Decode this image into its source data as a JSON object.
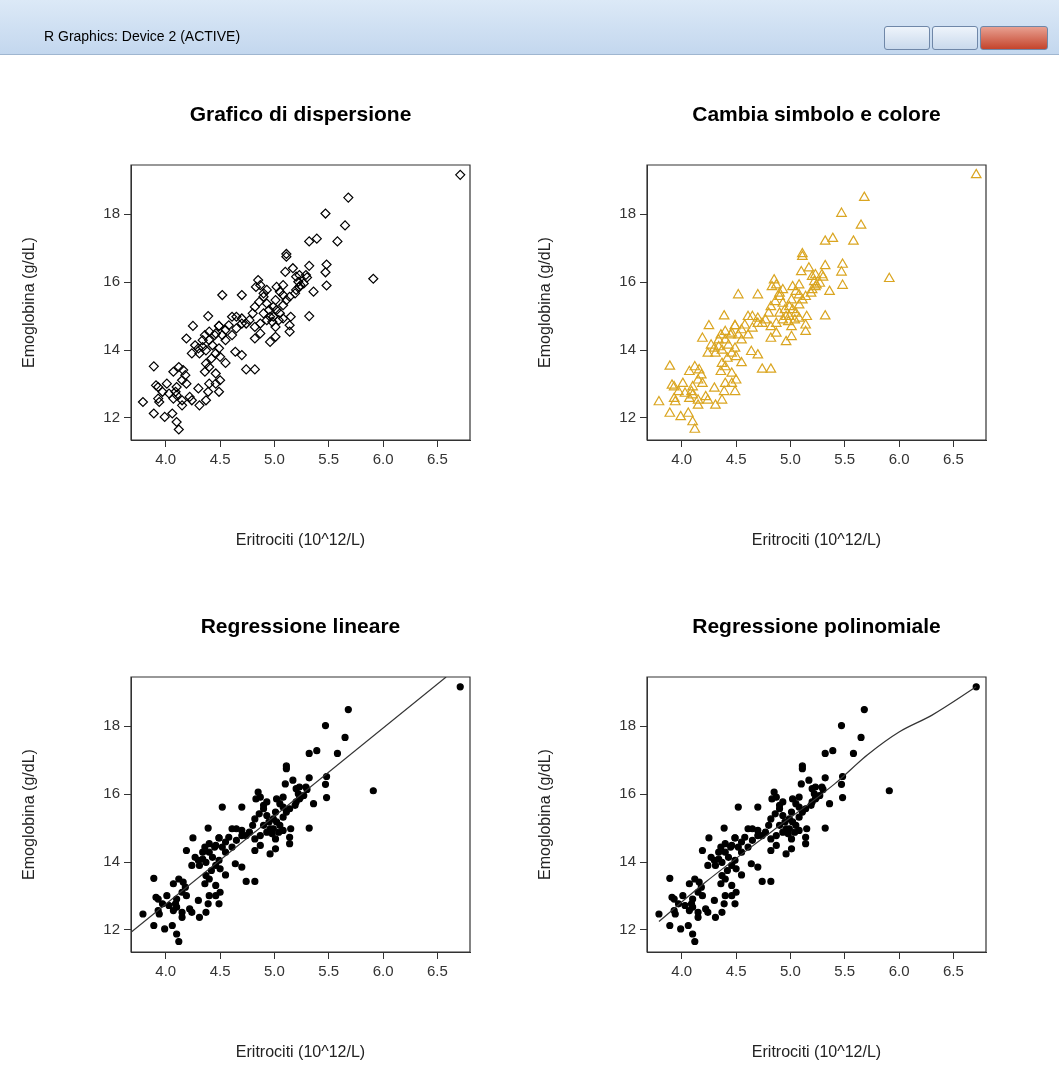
{
  "chart_data": [
    {
      "type": "scatter",
      "title": "Grafico di dispersione",
      "xlabel": "Eritrociti (10^12/L)",
      "ylabel": "Emoglobina (g/dL)",
      "marker": "diamond",
      "grid": false,
      "xlim": [
        3.68,
        6.8
      ],
      "ylim": [
        11.35,
        19.45
      ],
      "xticks": [
        {
          "value": 4,
          "label": "4.0"
        },
        4.5,
        {
          "value": 5,
          "label": "5.0"
        },
        5.5,
        {
          "value": 6,
          "label": "6.0"
        },
        6.5
      ],
      "yticks": [
        12,
        14,
        16,
        18
      ],
      "series": [
        {
          "type": "scatter",
          "color": "#000000",
          "x": [
            6.71,
            5.68,
            5.47,
            5.65,
            5.32,
            5.39,
            5.58,
            5.91,
            5.11,
            5.11,
            5.17,
            5.1,
            5.32,
            5.48,
            5.47,
            5.48,
            5.36,
            5.32,
            5.29,
            5.3,
            5.27,
            5.22,
            5.23,
            5.19,
            5.14,
            5.08,
            5.02,
            5.08,
            5.11,
            5.15,
            5.14,
            5.14,
            4.85,
            4.87,
            4.83,
            4.9,
            4.86,
            4.93,
            4.99,
            5.02,
            5.05,
            5.08,
            4.98,
            5.01,
            4.96,
            4.82,
            4.8,
            4.77,
            4.74,
            4.7,
            4.65,
            4.61,
            4.52,
            4.7,
            4.87,
            4.82,
            4.96,
            5.01,
            4.64,
            4.7,
            4.74,
            4.82,
            4.55,
            4.58,
            4.49,
            4.46,
            4.39,
            4.25,
            4.19,
            4.4,
            4.43,
            4.37,
            4.34,
            4.31,
            4.27,
            4.46,
            4.5,
            4.42,
            4.37,
            4.4,
            4.36,
            4.46,
            4.5,
            4.46,
            4.49,
            4.55,
            4.3,
            4.24,
            4.12,
            4.07,
            4.16,
            4.18,
            4.15,
            4.19,
            4.1,
            4.01,
            3.93,
            3.91,
            3.97,
            3.94,
            3.93,
            3.89,
            3.79,
            3.89,
            3.99,
            4.06,
            4.1,
            4.12,
            4.07,
            4.1,
            4.15,
            4.09,
            4.15,
            4.22,
            4.24,
            4.31,
            4.3,
            4.39,
            4.37,
            4.4,
            4.03,
            4.34,
            4.36,
            4.4,
            4.45,
            4.49,
            4.52,
            4.55,
            4.49,
            4.61,
            4.65,
            4.7,
            4.82,
            4.87,
            4.93,
            4.9,
            4.93,
            4.9,
            5.01,
            5.05,
            5.08,
            5.2,
            5.24,
            5.2,
            5.23,
            4.95,
            4.99,
            5.04
          ],
          "values": [
            19.16,
            18.49,
            18.02,
            17.67,
            17.2,
            17.28,
            17.2,
            16.1,
            16.83,
            16.75,
            16.41,
            16.3,
            16.48,
            16.52,
            16.29,
            15.9,
            15.72,
            15.0,
            16.21,
            16.14,
            15.96,
            16.01,
            15.86,
            15.67,
            15.57,
            15.91,
            15.86,
            15.62,
            15.47,
            14.98,
            14.73,
            14.54,
            16.06,
            15.91,
            15.86,
            15.57,
            15.42,
            15.37,
            15.27,
            15.18,
            15.08,
            14.93,
            14.83,
            14.68,
            14.98,
            15.27,
            15.08,
            14.88,
            14.78,
            14.93,
            14.98,
            14.98,
            15.62,
            15.62,
            14.49,
            14.34,
            14.24,
            14.39,
            13.95,
            13.85,
            13.43,
            13.43,
            14.59,
            14.73,
            14.71,
            14.49,
            15.0,
            14.71,
            14.34,
            14.29,
            14.14,
            13.99,
            14.09,
            13.9,
            14.14,
            13.9,
            13.8,
            13.75,
            13.6,
            13.5,
            13.36,
            13.31,
            13.11,
            13.01,
            12.77,
            13.62,
            14.05,
            13.9,
            13.5,
            13.36,
            13.41,
            13.26,
            13.11,
            13.01,
            12.91,
            13.01,
            12.91,
            12.96,
            12.77,
            12.47,
            12.57,
            13.52,
            12.47,
            12.13,
            12.03,
            12.13,
            11.88,
            11.66,
            12.57,
            12.67,
            12.52,
            12.77,
            12.37,
            12.62,
            12.52,
            12.37,
            12.87,
            12.77,
            12.52,
            13.01,
            12.72,
            14.29,
            14.44,
            14.54,
            14.44,
            14.71,
            14.44,
            14.29,
            14.05,
            14.44,
            14.64,
            14.78,
            14.68,
            14.78,
            14.88,
            15.08,
            15.77,
            15.67,
            15.47,
            15.72,
            15.32,
            15.77,
            15.91,
            16.16,
            16.21,
            15.18,
            14.98,
            14.88
          ]
        }
      ]
    },
    {
      "type": "scatter",
      "title": "Cambia simbolo e colore",
      "xlabel": "Eritrociti (10^12/L)",
      "ylabel": "Emoglobina (g/dL)",
      "marker": "triangle",
      "grid": false,
      "xlim": [
        3.68,
        6.8
      ],
      "ylim": [
        11.35,
        19.45
      ],
      "xticks": [
        {
          "value": 4,
          "label": "4.0"
        },
        4.5,
        {
          "value": 5,
          "label": "5.0"
        },
        5.5,
        {
          "value": 6,
          "label": "6.0"
        },
        6.5
      ],
      "yticks": [
        12,
        14,
        16,
        18
      ],
      "series": [
        {
          "type": "scatter",
          "color": "#daa520",
          "x": [
            6.71,
            5.68,
            5.47,
            5.65,
            5.32,
            5.39,
            5.58,
            5.91,
            5.11,
            5.11,
            5.17,
            5.1,
            5.32,
            5.48,
            5.47,
            5.48,
            5.36,
            5.32,
            5.29,
            5.3,
            5.27,
            5.22,
            5.23,
            5.19,
            5.14,
            5.08,
            5.02,
            5.08,
            5.11,
            5.15,
            5.14,
            5.14,
            4.85,
            4.87,
            4.83,
            4.9,
            4.86,
            4.93,
            4.99,
            5.02,
            5.05,
            5.08,
            4.98,
            5.01,
            4.96,
            4.82,
            4.8,
            4.77,
            4.74,
            4.7,
            4.65,
            4.61,
            4.52,
            4.7,
            4.87,
            4.82,
            4.96,
            5.01,
            4.64,
            4.7,
            4.74,
            4.82,
            4.55,
            4.58,
            4.49,
            4.46,
            4.39,
            4.25,
            4.19,
            4.4,
            4.43,
            4.37,
            4.34,
            4.31,
            4.27,
            4.46,
            4.5,
            4.42,
            4.37,
            4.4,
            4.36,
            4.46,
            4.5,
            4.46,
            4.49,
            4.55,
            4.3,
            4.24,
            4.12,
            4.07,
            4.16,
            4.18,
            4.15,
            4.19,
            4.1,
            4.01,
            3.93,
            3.91,
            3.97,
            3.94,
            3.93,
            3.89,
            3.79,
            3.89,
            3.99,
            4.06,
            4.1,
            4.12,
            4.07,
            4.1,
            4.15,
            4.09,
            4.15,
            4.22,
            4.24,
            4.31,
            4.3,
            4.39,
            4.37,
            4.4,
            4.03,
            4.34,
            4.36,
            4.4,
            4.45,
            4.49,
            4.52,
            4.55,
            4.49,
            4.61,
            4.65,
            4.7,
            4.82,
            4.87,
            4.93,
            4.9,
            4.93,
            4.9,
            5.01,
            5.05,
            5.08,
            5.2,
            5.24,
            5.2,
            5.23,
            4.95,
            4.99,
            5.04
          ],
          "values": [
            19.16,
            18.49,
            18.02,
            17.67,
            17.2,
            17.28,
            17.2,
            16.1,
            16.83,
            16.75,
            16.41,
            16.3,
            16.48,
            16.52,
            16.29,
            15.9,
            15.72,
            15.0,
            16.21,
            16.14,
            15.96,
            16.01,
            15.86,
            15.67,
            15.57,
            15.91,
            15.86,
            15.62,
            15.47,
            14.98,
            14.73,
            14.54,
            16.06,
            15.91,
            15.86,
            15.57,
            15.42,
            15.37,
            15.27,
            15.18,
            15.08,
            14.93,
            14.83,
            14.68,
            14.98,
            15.27,
            15.08,
            14.88,
            14.78,
            14.93,
            14.98,
            14.98,
            15.62,
            15.62,
            14.49,
            14.34,
            14.24,
            14.39,
            13.95,
            13.85,
            13.43,
            13.43,
            14.59,
            14.73,
            14.71,
            14.49,
            15.0,
            14.71,
            14.34,
            14.29,
            14.14,
            13.99,
            14.09,
            13.9,
            14.14,
            13.9,
            13.8,
            13.75,
            13.6,
            13.5,
            13.36,
            13.31,
            13.11,
            13.01,
            12.77,
            13.62,
            14.05,
            13.9,
            13.5,
            13.36,
            13.41,
            13.26,
            13.11,
            13.01,
            12.91,
            13.01,
            12.91,
            12.96,
            12.77,
            12.47,
            12.57,
            13.52,
            12.47,
            12.13,
            12.03,
            12.13,
            11.88,
            11.66,
            12.57,
            12.67,
            12.52,
            12.77,
            12.37,
            12.62,
            12.52,
            12.37,
            12.87,
            12.77,
            12.52,
            13.01,
            12.72,
            14.29,
            14.44,
            14.54,
            14.44,
            14.71,
            14.44,
            14.29,
            14.05,
            14.44,
            14.64,
            14.78,
            14.68,
            14.78,
            14.88,
            15.08,
            15.77,
            15.67,
            15.47,
            15.72,
            15.32,
            15.77,
            15.91,
            16.16,
            16.21,
            15.18,
            14.98,
            14.88
          ]
        }
      ]
    },
    {
      "type": "scatter",
      "title": "Regressione lineare",
      "xlabel": "Eritrociti (10^12/L)",
      "ylabel": "Emoglobina (g/dL)",
      "marker": "circle",
      "grid": false,
      "xlim": [
        3.68,
        6.8
      ],
      "ylim": [
        11.35,
        19.45
      ],
      "xticks": [
        {
          "value": 4,
          "label": "4.0"
        },
        4.5,
        {
          "value": 5,
          "label": "5.0"
        },
        5.5,
        {
          "value": 6,
          "label": "6.0"
        },
        6.5
      ],
      "yticks": [
        12,
        14,
        16,
        18
      ],
      "series": [
        {
          "type": "scatter",
          "color": "#000000",
          "x": [
            6.71,
            5.68,
            5.47,
            5.65,
            5.32,
            5.39,
            5.58,
            5.91,
            5.11,
            5.11,
            5.17,
            5.1,
            5.32,
            5.48,
            5.47,
            5.48,
            5.36,
            5.32,
            5.29,
            5.3,
            5.27,
            5.22,
            5.23,
            5.19,
            5.14,
            5.08,
            5.02,
            5.08,
            5.11,
            5.15,
            5.14,
            5.14,
            4.85,
            4.87,
            4.83,
            4.9,
            4.86,
            4.93,
            4.99,
            5.02,
            5.05,
            5.08,
            4.98,
            5.01,
            4.96,
            4.82,
            4.8,
            4.77,
            4.74,
            4.7,
            4.65,
            4.61,
            4.52,
            4.7,
            4.87,
            4.82,
            4.96,
            5.01,
            4.64,
            4.7,
            4.74,
            4.82,
            4.55,
            4.58,
            4.49,
            4.46,
            4.39,
            4.25,
            4.19,
            4.4,
            4.43,
            4.37,
            4.34,
            4.31,
            4.27,
            4.46,
            4.5,
            4.42,
            4.37,
            4.4,
            4.36,
            4.46,
            4.5,
            4.46,
            4.49,
            4.55,
            4.3,
            4.24,
            4.12,
            4.07,
            4.16,
            4.18,
            4.15,
            4.19,
            4.1,
            4.01,
            3.93,
            3.91,
            3.97,
            3.94,
            3.93,
            3.89,
            3.79,
            3.89,
            3.99,
            4.06,
            4.1,
            4.12,
            4.07,
            4.1,
            4.15,
            4.09,
            4.15,
            4.22,
            4.24,
            4.31,
            4.3,
            4.39,
            4.37,
            4.4,
            4.03,
            4.34,
            4.36,
            4.4,
            4.45,
            4.49,
            4.52,
            4.55,
            4.49,
            4.61,
            4.65,
            4.7,
            4.82,
            4.87,
            4.93,
            4.9,
            4.93,
            4.9,
            5.01,
            5.05,
            5.08,
            5.2,
            5.24,
            5.2,
            5.23,
            4.95,
            4.99,
            5.04
          ],
          "values": [
            19.16,
            18.49,
            18.02,
            17.67,
            17.2,
            17.28,
            17.2,
            16.1,
            16.83,
            16.75,
            16.41,
            16.3,
            16.48,
            16.52,
            16.29,
            15.9,
            15.72,
            15.0,
            16.21,
            16.14,
            15.96,
            16.01,
            15.86,
            15.67,
            15.57,
            15.91,
            15.86,
            15.62,
            15.47,
            14.98,
            14.73,
            14.54,
            16.06,
            15.91,
            15.86,
            15.57,
            15.42,
            15.37,
            15.27,
            15.18,
            15.08,
            14.93,
            14.83,
            14.68,
            14.98,
            15.27,
            15.08,
            14.88,
            14.78,
            14.93,
            14.98,
            14.98,
            15.62,
            15.62,
            14.49,
            14.34,
            14.24,
            14.39,
            13.95,
            13.85,
            13.43,
            13.43,
            14.59,
            14.73,
            14.71,
            14.49,
            15.0,
            14.71,
            14.34,
            14.29,
            14.14,
            13.99,
            14.09,
            13.9,
            14.14,
            13.9,
            13.8,
            13.75,
            13.6,
            13.5,
            13.36,
            13.31,
            13.11,
            13.01,
            12.77,
            13.62,
            14.05,
            13.9,
            13.5,
            13.36,
            13.41,
            13.26,
            13.11,
            13.01,
            12.91,
            13.01,
            12.91,
            12.96,
            12.77,
            12.47,
            12.57,
            13.52,
            12.47,
            12.13,
            12.03,
            12.13,
            11.88,
            11.66,
            12.57,
            12.67,
            12.52,
            12.77,
            12.37,
            12.62,
            12.52,
            12.37,
            12.87,
            12.77,
            12.52,
            13.01,
            12.72,
            14.29,
            14.44,
            14.54,
            14.44,
            14.71,
            14.44,
            14.29,
            14.05,
            14.44,
            14.64,
            14.78,
            14.68,
            14.78,
            14.88,
            15.08,
            15.77,
            15.67,
            15.47,
            15.72,
            15.32,
            15.77,
            15.91,
            16.16,
            16.21,
            15.18,
            14.98,
            14.88
          ]
        },
        {
          "type": "line",
          "marker": "none",
          "color": "#333333",
          "x": [
            3.68,
            6.58
          ],
          "values": [
            11.93,
            19.45
          ]
        }
      ]
    },
    {
      "type": "scatter",
      "title": "Regressione polinomiale",
      "xlabel": "Eritrociti (10^12/L)",
      "ylabel": "Emoglobina (g/dL)",
      "marker": "circle",
      "grid": false,
      "xlim": [
        3.68,
        6.8
      ],
      "ylim": [
        11.35,
        19.45
      ],
      "xticks": [
        {
          "value": 4,
          "label": "4.0"
        },
        4.5,
        {
          "value": 5,
          "label": "5.0"
        },
        5.5,
        {
          "value": 6,
          "label": "6.0"
        },
        6.5
      ],
      "yticks": [
        12,
        14,
        16,
        18
      ],
      "series": [
        {
          "type": "scatter",
          "color": "#000000",
          "x": [
            6.71,
            5.68,
            5.47,
            5.65,
            5.32,
            5.39,
            5.58,
            5.91,
            5.11,
            5.11,
            5.17,
            5.1,
            5.32,
            5.48,
            5.47,
            5.48,
            5.36,
            5.32,
            5.29,
            5.3,
            5.27,
            5.22,
            5.23,
            5.19,
            5.14,
            5.08,
            5.02,
            5.08,
            5.11,
            5.15,
            5.14,
            5.14,
            4.85,
            4.87,
            4.83,
            4.9,
            4.86,
            4.93,
            4.99,
            5.02,
            5.05,
            5.08,
            4.98,
            5.01,
            4.96,
            4.82,
            4.8,
            4.77,
            4.74,
            4.7,
            4.65,
            4.61,
            4.52,
            4.7,
            4.87,
            4.82,
            4.96,
            5.01,
            4.64,
            4.7,
            4.74,
            4.82,
            4.55,
            4.58,
            4.49,
            4.46,
            4.39,
            4.25,
            4.19,
            4.4,
            4.43,
            4.37,
            4.34,
            4.31,
            4.27,
            4.46,
            4.5,
            4.42,
            4.37,
            4.4,
            4.36,
            4.46,
            4.5,
            4.46,
            4.49,
            4.55,
            4.3,
            4.24,
            4.12,
            4.07,
            4.16,
            4.18,
            4.15,
            4.19,
            4.1,
            4.01,
            3.93,
            3.91,
            3.97,
            3.94,
            3.93,
            3.89,
            3.79,
            3.89,
            3.99,
            4.06,
            4.1,
            4.12,
            4.07,
            4.1,
            4.15,
            4.09,
            4.15,
            4.22,
            4.24,
            4.31,
            4.3,
            4.39,
            4.37,
            4.4,
            4.03,
            4.34,
            4.36,
            4.4,
            4.45,
            4.49,
            4.52,
            4.55,
            4.49,
            4.61,
            4.65,
            4.7,
            4.82,
            4.87,
            4.93,
            4.9,
            4.93,
            4.9,
            5.01,
            5.05,
            5.08,
            5.2,
            5.24,
            5.2,
            5.23,
            4.95,
            4.99,
            5.04
          ],
          "values": [
            19.16,
            18.49,
            18.02,
            17.67,
            17.2,
            17.28,
            17.2,
            16.1,
            16.83,
            16.75,
            16.41,
            16.3,
            16.48,
            16.52,
            16.29,
            15.9,
            15.72,
            15.0,
            16.21,
            16.14,
            15.96,
            16.01,
            15.86,
            15.67,
            15.57,
            15.91,
            15.86,
            15.62,
            15.47,
            14.98,
            14.73,
            14.54,
            16.06,
            15.91,
            15.86,
            15.57,
            15.42,
            15.37,
            15.27,
            15.18,
            15.08,
            14.93,
            14.83,
            14.68,
            14.98,
            15.27,
            15.08,
            14.88,
            14.78,
            14.93,
            14.98,
            14.98,
            15.62,
            15.62,
            14.49,
            14.34,
            14.24,
            14.39,
            13.95,
            13.85,
            13.43,
            13.43,
            14.59,
            14.73,
            14.71,
            14.49,
            15.0,
            14.71,
            14.34,
            14.29,
            14.14,
            13.99,
            14.09,
            13.9,
            14.14,
            13.9,
            13.8,
            13.75,
            13.6,
            13.5,
            13.36,
            13.31,
            13.11,
            13.01,
            12.77,
            13.62,
            14.05,
            13.9,
            13.5,
            13.36,
            13.41,
            13.26,
            13.11,
            13.01,
            12.91,
            13.01,
            12.91,
            12.96,
            12.77,
            12.47,
            12.57,
            13.52,
            12.47,
            12.13,
            12.03,
            12.13,
            11.88,
            11.66,
            12.57,
            12.67,
            12.52,
            12.77,
            12.37,
            12.62,
            12.52,
            12.37,
            12.87,
            12.77,
            12.52,
            13.01,
            12.72,
            14.29,
            14.44,
            14.54,
            14.44,
            14.71,
            14.44,
            14.29,
            14.05,
            14.44,
            14.64,
            14.78,
            14.68,
            14.78,
            14.88,
            15.08,
            15.77,
            15.67,
            15.47,
            15.72,
            15.32,
            15.77,
            15.91,
            16.16,
            16.21,
            15.18,
            14.98,
            14.88
          ]
        },
        {
          "type": "line",
          "marker": "none",
          "color": "#333333",
          "x": [
            3.79,
            4.22,
            4.82,
            5.41,
            5.71,
            6.0,
            6.3,
            6.71
          ],
          "values": [
            12.25,
            13.41,
            14.88,
            16.31,
            17.16,
            17.83,
            18.32,
            19.16
          ]
        }
      ]
    },
    {
      "type": "other",
      "title": "R Graphics: Device 2 (ACTIVE)"
    }
  ]
}
